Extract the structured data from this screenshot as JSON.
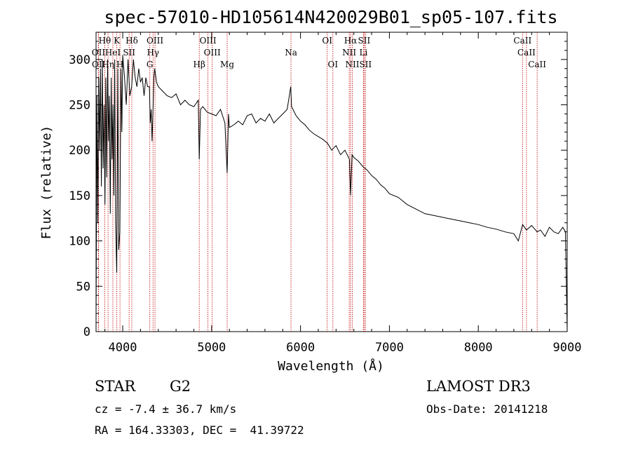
{
  "chart_data": {
    "type": "line",
    "title": "spec-57010-HD105614N420029B01_sp05-107.fits",
    "xlabel": "Wavelength (Å)",
    "ylabel": "Flux (relative)",
    "xlim": [
      3700,
      9000
    ],
    "ylim": [
      0,
      330
    ],
    "xticks": [
      4000,
      5000,
      6000,
      7000,
      8000,
      9000
    ],
    "yticks": [
      0,
      50,
      100,
      150,
      200,
      250,
      300
    ],
    "colors": {
      "spectrum": "#000000",
      "line_marker": "#c00000"
    },
    "series": [
      {
        "name": "flux",
        "x": [
          3700,
          3710,
          3720,
          3730,
          3740,
          3750,
          3760,
          3770,
          3780,
          3790,
          3800,
          3810,
          3820,
          3830,
          3840,
          3850,
          3860,
          3870,
          3880,
          3890,
          3900,
          3910,
          3920,
          3933,
          3945,
          3955,
          3968,
          3980,
          3990,
          4000,
          4020,
          4040,
          4060,
          4080,
          4101,
          4120,
          4140,
          4160,
          4180,
          4200,
          4220,
          4240,
          4260,
          4280,
          4300,
          4310,
          4320,
          4330,
          4340,
          4350,
          4360,
          4380,
          4400,
          4450,
          4500,
          4550,
          4600,
          4650,
          4700,
          4750,
          4800,
          4850,
          4861,
          4875,
          4900,
          4950,
          5000,
          5050,
          5100,
          5150,
          5175,
          5190,
          5200,
          5250,
          5300,
          5350,
          5400,
          5450,
          5500,
          5550,
          5600,
          5650,
          5700,
          5750,
          5800,
          5850,
          5890,
          5900,
          5950,
          6000,
          6050,
          6100,
          6150,
          6200,
          6250,
          6300,
          6320,
          6350,
          6400,
          6450,
          6500,
          6550,
          6563,
          6580,
          6600,
          6650,
          6700,
          6750,
          6800,
          6850,
          6900,
          6950,
          7000,
          7100,
          7200,
          7300,
          7400,
          7500,
          7600,
          7700,
          7800,
          7900,
          8000,
          8100,
          8200,
          8300,
          8400,
          8450,
          8498,
          8542,
          8600,
          8662,
          8700,
          8750,
          8800,
          8850,
          8900,
          8950,
          8980,
          9000
        ],
        "y": [
          10,
          260,
          120,
          280,
          200,
          290,
          160,
          300,
          180,
          250,
          140,
          280,
          170,
          300,
          210,
          260,
          130,
          280,
          190,
          250,
          150,
          300,
          120,
          65,
          290,
          90,
          110,
          290,
          220,
          305,
          280,
          250,
          300,
          260,
          270,
          300,
          280,
          270,
          290,
          275,
          280,
          260,
          280,
          270,
          270,
          230,
          245,
          210,
          240,
          280,
          290,
          275,
          270,
          265,
          260,
          258,
          262,
          250,
          255,
          250,
          248,
          255,
          190,
          245,
          248,
          242,
          240,
          238,
          245,
          230,
          175,
          240,
          225,
          228,
          232,
          228,
          238,
          240,
          230,
          235,
          232,
          240,
          230,
          235,
          240,
          245,
          270,
          248,
          238,
          232,
          228,
          222,
          218,
          215,
          212,
          208,
          205,
          200,
          205,
          195,
          200,
          190,
          150,
          195,
          192,
          188,
          182,
          178,
          172,
          168,
          162,
          158,
          152,
          148,
          140,
          135,
          130,
          128,
          126,
          124,
          122,
          120,
          118,
          115,
          113,
          110,
          108,
          100,
          118,
          112,
          117,
          110,
          112,
          105,
          115,
          110,
          108,
          115,
          110,
          0
        ]
      }
    ],
    "lines_top": [
      {
        "label": "Hθ",
        "x": 3798,
        "row": 1
      },
      {
        "label": "K",
        "x": 3934,
        "row": 1
      },
      {
        "label": "Hδ",
        "x": 4102,
        "row": 1
      },
      {
        "label": "OIII",
        "x": 4363,
        "row": 1
      },
      {
        "label": "OIII",
        "x": 4959,
        "row": 1
      },
      {
        "label": "OI",
        "x": 6300,
        "row": 1
      },
      {
        "label": "Hα",
        "x": 6563,
        "row": 1
      },
      {
        "label": "SII",
        "x": 6716,
        "row": 1
      },
      {
        "label": "CaII",
        "x": 8498,
        "row": 1
      },
      {
        "label": "OII",
        "x": 3727,
        "row": 2
      },
      {
        "label": "HeI",
        "x": 3889,
        "row": 2
      },
      {
        "label": "SII",
        "x": 4072,
        "row": 2
      },
      {
        "label": "Hγ",
        "x": 4341,
        "row": 2
      },
      {
        "label": "OIII",
        "x": 5007,
        "row": 2
      },
      {
        "label": "Na",
        "x": 5893,
        "row": 2
      },
      {
        "label": "NII",
        "x": 6548,
        "row": 2
      },
      {
        "label": "Li",
        "x": 6708,
        "row": 2
      },
      {
        "label": "CaII",
        "x": 8542,
        "row": 2
      },
      {
        "label": "OII",
        "x": 3729,
        "row": 3
      },
      {
        "label": "Hη",
        "x": 3835,
        "row": 3
      },
      {
        "label": "H",
        "x": 3969,
        "row": 3
      },
      {
        "label": "G",
        "x": 4305,
        "row": 3
      },
      {
        "label": "Hβ",
        "x": 4861,
        "row": 3
      },
      {
        "label": "Mg",
        "x": 5175,
        "row": 3
      },
      {
        "label": "OI",
        "x": 6364,
        "row": 3
      },
      {
        "label": "NII",
        "x": 6583,
        "row": 3
      },
      {
        "label": "SII",
        "x": 6731,
        "row": 3
      },
      {
        "label": "CaII",
        "x": 8662,
        "row": 3
      }
    ]
  },
  "info": {
    "object_type": "STAR",
    "subclass": "G2",
    "survey": "LAMOST DR3",
    "cz": "cz = -7.4 ± 36.7 km/s",
    "obs_date": "Obs-Date: 20141218",
    "coords": "RA = 164.33303, DEC =  41.39722"
  }
}
